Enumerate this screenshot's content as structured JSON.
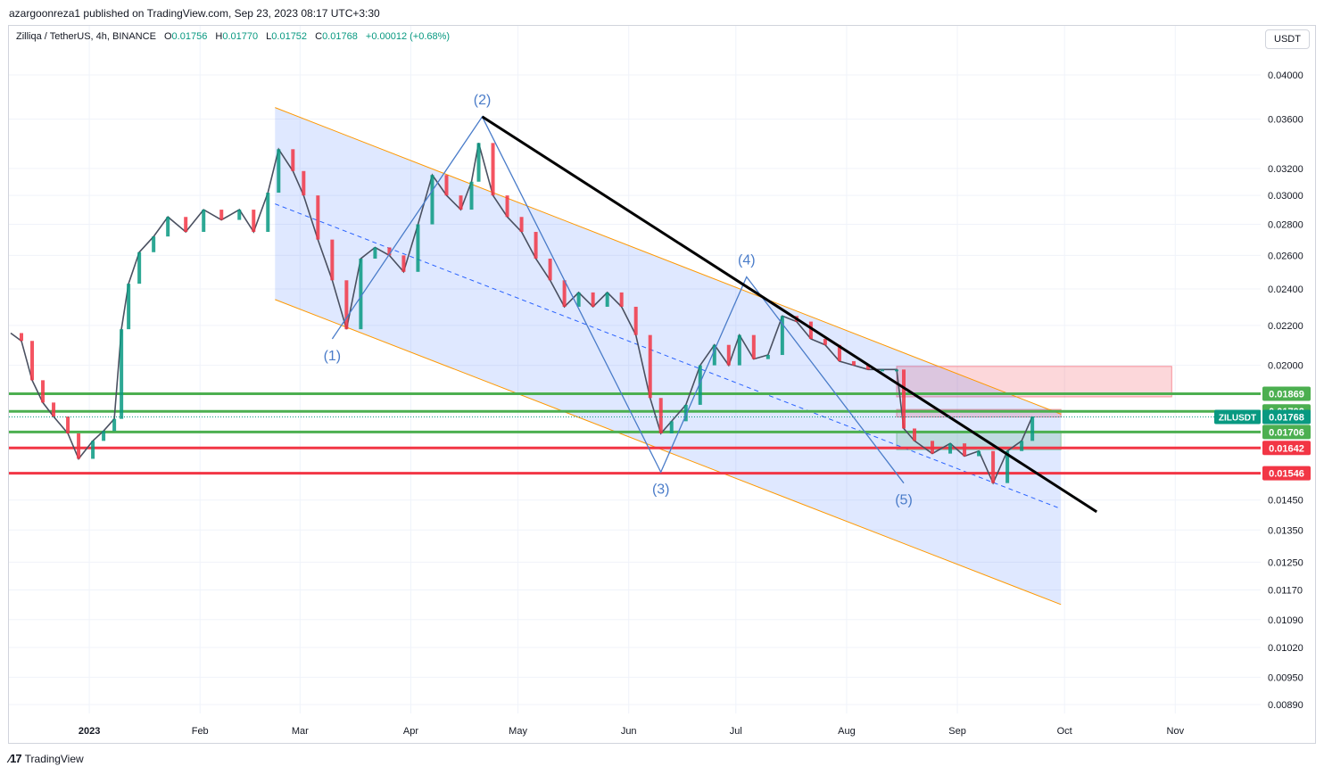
{
  "header": {
    "published": "azargoonreza1 published on TradingView.com, Sep 23, 2023 08:17 UTC+3:30",
    "symbol": "Zilliqa / TetherUS, 4h, BINANCE",
    "ohlc": {
      "open_label": "O",
      "open": "0.01756",
      "high_label": "H",
      "high": "0.01770",
      "low_label": "L",
      "low": "0.01752",
      "close_label": "C",
      "close": "0.01768",
      "change": "+0.00012 (+0.68%)"
    },
    "unit": "USDT"
  },
  "footer": {
    "brand": "TradingView"
  },
  "chart_data": {
    "type": "line",
    "title": "Zilliqa / TetherUS, 4h, BINANCE",
    "yscale": "log",
    "ylim": [
      0.0085,
      0.0415
    ],
    "y_ticks": [
      "0.04000",
      "0.03600",
      "0.03200",
      "0.03000",
      "0.02800",
      "0.02600",
      "0.02400",
      "0.02200",
      "0.02000",
      "0.01450",
      "0.01350",
      "0.01250",
      "0.01170",
      "0.01090",
      "0.01020",
      "0.00950",
      "0.00890"
    ],
    "x_ticks": [
      "2023",
      "Feb",
      "Mar",
      "Apr",
      "May",
      "Jun",
      "Jul",
      "Aug",
      "Sep",
      "Oct",
      "Nov"
    ],
    "series": [
      {
        "x": [
          "2022-12-10",
          "2022-12-13",
          "2022-12-16",
          "2022-12-19",
          "2022-12-22",
          "2022-12-26",
          "2022-12-29",
          "2023-01-02",
          "2023-01-05",
          "2023-01-08",
          "2023-01-10",
          "2023-01-12",
          "2023-01-15",
          "2023-01-19",
          "2023-01-23",
          "2023-01-28",
          "2023-02-02",
          "2023-02-07",
          "2023-02-12",
          "2023-02-16",
          "2023-02-20",
          "2023-02-23",
          "2023-02-27",
          "2023-03-02",
          "2023-03-06",
          "2023-03-10",
          "2023-03-14",
          "2023-03-18",
          "2023-03-22",
          "2023-03-26",
          "2023-03-30",
          "2023-04-03",
          "2023-04-07",
          "2023-04-11",
          "2023-04-15",
          "2023-04-18",
          "2023-04-20",
          "2023-04-24",
          "2023-04-28",
          "2023-05-02",
          "2023-05-06",
          "2023-05-10",
          "2023-05-14",
          "2023-05-18",
          "2023-05-22",
          "2023-05-26",
          "2023-05-30",
          "2023-06-03",
          "2023-06-07",
          "2023-06-10",
          "2023-06-13",
          "2023-06-17",
          "2023-06-21",
          "2023-06-25",
          "2023-06-29",
          "2023-07-02",
          "2023-07-06",
          "2023-07-10",
          "2023-07-14",
          "2023-07-18",
          "2023-07-22",
          "2023-07-26",
          "2023-07-30",
          "2023-08-03",
          "2023-08-07",
          "2023-08-11",
          "2023-08-15",
          "2023-08-17",
          "2023-08-20",
          "2023-08-25",
          "2023-08-30",
          "2023-09-03",
          "2023-09-07",
          "2023-09-11",
          "2023-09-15",
          "2023-09-19",
          "2023-09-22"
        ],
        "y": [
          0.0216,
          0.0212,
          0.0193,
          0.0183,
          0.0177,
          0.017,
          0.016,
          0.0167,
          0.0171,
          0.0176,
          0.0218,
          0.0243,
          0.0262,
          0.0272,
          0.0285,
          0.0275,
          0.029,
          0.0283,
          0.029,
          0.0275,
          0.0302,
          0.0335,
          0.0318,
          0.03,
          0.027,
          0.0245,
          0.0218,
          0.0258,
          0.0265,
          0.026,
          0.025,
          0.028,
          0.0315,
          0.03,
          0.029,
          0.031,
          0.034,
          0.03,
          0.0285,
          0.0275,
          0.0258,
          0.0245,
          0.023,
          0.0238,
          0.023,
          0.0238,
          0.023,
          0.0215,
          0.0185,
          0.017,
          0.0175,
          0.0182,
          0.02,
          0.021,
          0.02,
          0.0215,
          0.0203,
          0.0205,
          0.0225,
          0.0222,
          0.0213,
          0.021,
          0.0202,
          0.02,
          0.0198,
          0.0198,
          0.0198,
          0.0172,
          0.0167,
          0.0162,
          0.0166,
          0.0161,
          0.0163,
          0.0151,
          0.0163,
          0.0167,
          0.0177
        ]
      }
    ],
    "waves": [
      {
        "label": "(1)",
        "date": "2023-03-10",
        "value": 0.0213
      },
      {
        "label": "(2)",
        "date": "2023-04-21",
        "value": 0.0362
      },
      {
        "label": "(3)",
        "date": "2023-06-10",
        "value": 0.0155
      },
      {
        "label": "(4)",
        "date": "2023-07-04",
        "value": 0.0247
      },
      {
        "label": "(5)",
        "date": "2023-08-17",
        "value": 0.0151
      }
    ],
    "levels": [
      {
        "label": "0.01869",
        "value": 0.01869,
        "color": "#4caf50"
      },
      {
        "label": "0.01792",
        "value": 0.01792,
        "color": "#4caf50"
      },
      {
        "label": "0.01706",
        "value": 0.01706,
        "color": "#4caf50"
      },
      {
        "label": "0.01642",
        "value": 0.01642,
        "color": "#f23645"
      },
      {
        "label": "0.01546",
        "value": 0.01546,
        "color": "#f23645"
      }
    ],
    "last_price": {
      "symbol": "ZILUSDT",
      "value": "0.01768"
    },
    "channel": {
      "upper": [
        [
          "2023-02-22",
          0.037
        ],
        [
          "2023-09-30",
          0.0178
        ]
      ],
      "lower": [
        [
          "2023-02-22",
          0.0234
        ],
        [
          "2023-09-30",
          0.0113
        ]
      ],
      "middle": [
        [
          "2023-02-22",
          0.0294
        ],
        [
          "2023-09-30",
          0.0142
        ]
      ]
    },
    "trendline": [
      [
        "2023-04-21",
        0.0362
      ],
      [
        "2023-10-10",
        0.0141
      ]
    ],
    "zones": [
      {
        "from": "2023-08-15",
        "to": "2023-10-31",
        "low": 0.01855,
        "high": 0.01995,
        "color": "#f23645"
      },
      {
        "from": "2023-08-15",
        "to": "2023-09-30",
        "low": 0.01768,
        "high": 0.018,
        "color": "#f23645"
      },
      {
        "from": "2023-08-15",
        "to": "2023-09-30",
        "low": 0.01635,
        "high": 0.01706,
        "color": "#4caf50"
      }
    ],
    "colors": {
      "up": "#089981",
      "down": "#f23645",
      "channel_fill": "#2962ff",
      "channel_line": "#ff9800",
      "wave_line": "#4a7cc9",
      "trendline": "#000000"
    },
    "grid": true
  }
}
